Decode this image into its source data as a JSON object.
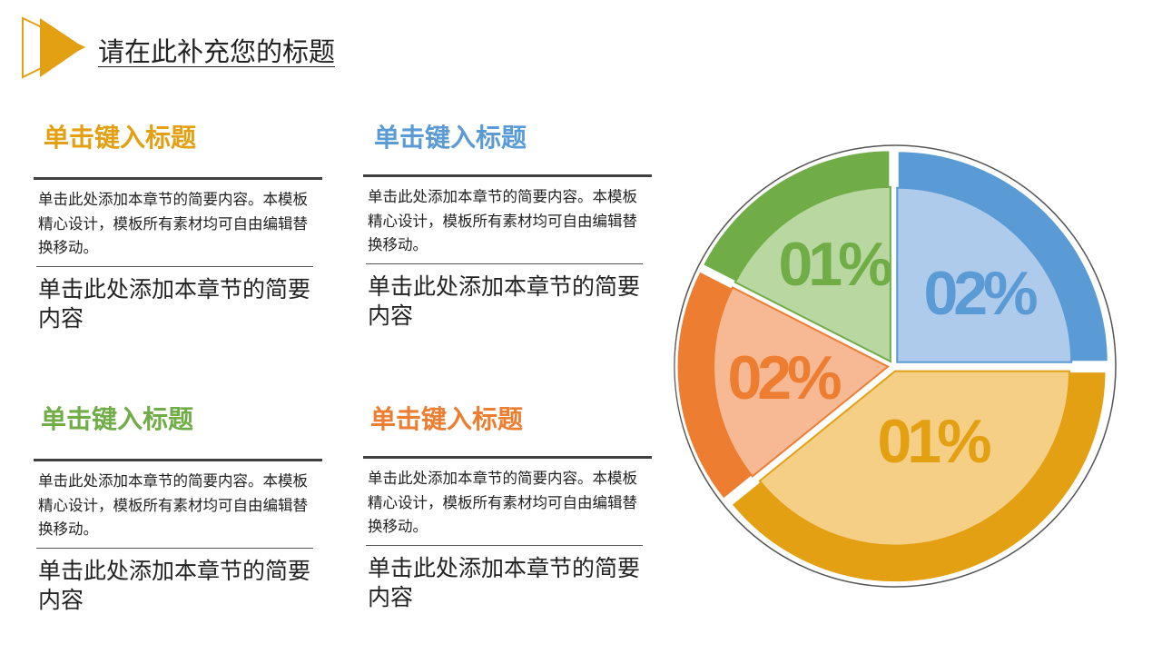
{
  "header": {
    "title": "请在此补充您的标题"
  },
  "blocks": [
    {
      "heading": "单击键入标题",
      "color": "#e2a012",
      "body": "单击此处添加本章节的简要内容。本模板精心设计，模板所有素材均可自由编辑替换移动。",
      "summary": "单击此处添加本章节的简要内容"
    },
    {
      "heading": "单击键入标题",
      "color": "#5b9bd5",
      "body": "单击此处添加本章节的简要内容。本模板精心设计，模板所有素材均可自由编辑替换移动。",
      "summary": "单击此处添加本章节的简要内容"
    },
    {
      "heading": "单击键入标题",
      "color": "#70ad47",
      "body": "单击此处添加本章节的简要内容。本模板精心设计，模板所有素材均可自由编辑替换移动。",
      "summary": "单击此处添加本章节的简要内容"
    },
    {
      "heading": "单击键入标题",
      "color": "#ed7d31",
      "body": "单击此处添加本章节的简要内容。本模板精心设计，模板所有素材均可自由编辑替换移动。",
      "summary": "单击此处添加本章节的简要内容"
    }
  ],
  "pie": {
    "slices": [
      {
        "label": "02%",
        "color": "#5b9bd5",
        "light": "#aecbeb"
      },
      {
        "label": "01%",
        "color": "#e4a013",
        "light": "#f5cf86"
      },
      {
        "label": "02%",
        "color": "#ed7d31",
        "light": "#f6b994"
      },
      {
        "label": "01%",
        "color": "#70ad47",
        "light": "#b8d7a1"
      }
    ]
  }
}
